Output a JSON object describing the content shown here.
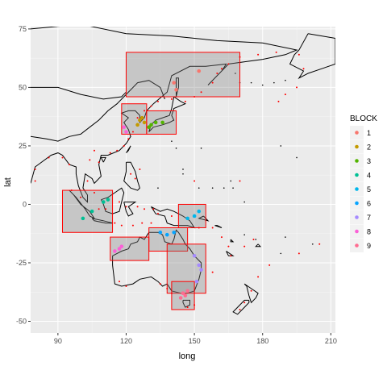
{
  "chart_data": {
    "type": "scatter",
    "title": "",
    "xlabel": "long",
    "ylabel": "lat",
    "xlim": [
      78,
      212
    ],
    "ylim": [
      -55,
      76
    ],
    "x_ticks": [
      90,
      120,
      150,
      180,
      210
    ],
    "y_ticks": [
      -50,
      -25,
      0,
      25,
      50,
      75
    ],
    "x_tick_labels": [
      "90",
      "120",
      "150",
      "180",
      "210"
    ],
    "y_tick_labels": [
      "-50",
      "-25",
      "0",
      "25",
      "50",
      "75"
    ],
    "grid": true,
    "legend_position": "right",
    "legend": {
      "title": "BLOCK",
      "entries": [
        {
          "label": "1",
          "color": "#F8766D"
        },
        {
          "label": "2",
          "color": "#C49A00"
        },
        {
          "label": "3",
          "color": "#53B400"
        },
        {
          "label": "4",
          "color": "#00C094"
        },
        {
          "label": "5",
          "color": "#00B6EB"
        },
        {
          "label": "6",
          "color": "#06A4FF"
        },
        {
          "label": "7",
          "color": "#A58AFF"
        },
        {
          "label": "8",
          "color": "#FB61D7"
        },
        {
          "label": "9",
          "color": "#FF6C91"
        }
      ]
    },
    "blocks": [
      {
        "block": "1",
        "xmin": 120,
        "xmax": 170,
        "ymin": 46,
        "ymax": 65
      },
      {
        "block": "2",
        "xmin": 118,
        "xmax": 129,
        "ymin": 30,
        "ymax": 43
      },
      {
        "block": "3",
        "xmin": 129,
        "xmax": 142,
        "ymin": 30,
        "ymax": 40
      },
      {
        "block": "4",
        "xmin": 92,
        "xmax": 114,
        "ymin": -12,
        "ymax": 6
      },
      {
        "block": "5",
        "xmin": 143,
        "xmax": 155,
        "ymin": -10,
        "ymax": 0
      },
      {
        "block": "6",
        "xmin": 130,
        "xmax": 147,
        "ymin": -20,
        "ymax": -10
      },
      {
        "block": "7",
        "xmin": 138,
        "xmax": 155,
        "ymin": -38,
        "ymax": -17
      },
      {
        "block": "8",
        "xmin": 113,
        "xmax": 130,
        "ymin": -24,
        "ymax": -14
      },
      {
        "block": "9",
        "xmin": 140,
        "xmax": 150,
        "ymin": -45,
        "ymax": -33
      }
    ],
    "points": [
      {
        "block": "1",
        "x": 141,
        "y": 52
      },
      {
        "block": "1",
        "x": 152,
        "y": 57
      },
      {
        "block": "1",
        "x": 142,
        "y": 49
      },
      {
        "block": "2",
        "x": 126,
        "y": 36
      },
      {
        "block": "2",
        "x": 127,
        "y": 37
      },
      {
        "block": "2",
        "x": 125,
        "y": 34
      },
      {
        "block": "2",
        "x": 128,
        "y": 35
      },
      {
        "block": "3",
        "x": 130,
        "y": 33
      },
      {
        "block": "3",
        "x": 131,
        "y": 34
      },
      {
        "block": "3",
        "x": 133,
        "y": 35
      },
      {
        "block": "3",
        "x": 136,
        "y": 35
      },
      {
        "block": "4",
        "x": 105,
        "y": -3
      },
      {
        "block": "4",
        "x": 110,
        "y": 1
      },
      {
        "block": "4",
        "x": 112,
        "y": 2
      },
      {
        "block": "4",
        "x": 101,
        "y": -6
      },
      {
        "block": "5",
        "x": 147,
        "y": -6
      },
      {
        "block": "5",
        "x": 150,
        "y": -5
      },
      {
        "block": "5",
        "x": 152,
        "y": -3
      },
      {
        "block": "6",
        "x": 135,
        "y": -12
      },
      {
        "block": "6",
        "x": 138,
        "y": -13
      },
      {
        "block": "6",
        "x": 141,
        "y": -12
      },
      {
        "block": "7",
        "x": 150,
        "y": -22
      },
      {
        "block": "7",
        "x": 152,
        "y": -26
      },
      {
        "block": "7",
        "x": 153,
        "y": -28
      },
      {
        "block": "7",
        "x": 151,
        "y": -33
      },
      {
        "block": "8",
        "x": 115,
        "y": -20
      },
      {
        "block": "8",
        "x": 118,
        "y": -18
      },
      {
        "block": "8",
        "x": 117,
        "y": -19
      },
      {
        "block": "9",
        "x": 145,
        "y": -38
      },
      {
        "block": "9",
        "x": 146,
        "y": -39
      },
      {
        "block": "9",
        "x": 144,
        "y": -40
      },
      {
        "block": "9",
        "x": 147,
        "y": -37
      },
      {
        "block": "8",
        "x": 119,
        "y": 33
      },
      {
        "block": "8",
        "x": 120,
        "y": 31
      }
    ]
  }
}
